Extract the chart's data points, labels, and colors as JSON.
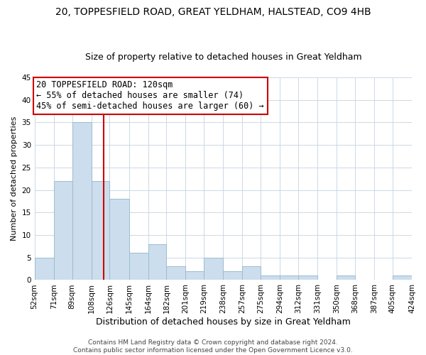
{
  "title": "20, TOPPESFIELD ROAD, GREAT YELDHAM, HALSTEAD, CO9 4HB",
  "subtitle": "Size of property relative to detached houses in Great Yeldham",
  "xlabel": "Distribution of detached houses by size in Great Yeldham",
  "ylabel": "Number of detached properties",
  "bar_edges": [
    52,
    71,
    89,
    108,
    126,
    145,
    164,
    182,
    201,
    219,
    238,
    257,
    275,
    294,
    312,
    331,
    350,
    368,
    387,
    405,
    424
  ],
  "bar_heights": [
    5,
    22,
    35,
    22,
    18,
    6,
    8,
    3,
    2,
    5,
    2,
    3,
    1,
    1,
    1,
    0,
    1,
    0,
    0,
    1
  ],
  "bar_color": "#ccdded",
  "bar_edgecolor": "#9bbdcf",
  "vline_x": 120,
  "vline_color": "#cc0000",
  "annotation_title": "20 TOPPESFIELD ROAD: 120sqm",
  "annotation_line1": "← 55% of detached houses are smaller (74)",
  "annotation_line2": "45% of semi-detached houses are larger (60) →",
  "annotation_box_color": "#ffffff",
  "annotation_box_edgecolor": "#cc0000",
  "ylim": [
    0,
    45
  ],
  "yticks": [
    0,
    5,
    10,
    15,
    20,
    25,
    30,
    35,
    40,
    45
  ],
  "tick_labels": [
    "52sqm",
    "71sqm",
    "89sqm",
    "108sqm",
    "126sqm",
    "145sqm",
    "164sqm",
    "182sqm",
    "201sqm",
    "219sqm",
    "238sqm",
    "257sqm",
    "275sqm",
    "294sqm",
    "312sqm",
    "331sqm",
    "350sqm",
    "368sqm",
    "387sqm",
    "405sqm",
    "424sqm"
  ],
  "footer_line1": "Contains HM Land Registry data © Crown copyright and database right 2024.",
  "footer_line2": "Contains public sector information licensed under the Open Government Licence v3.0.",
  "background_color": "#ffffff",
  "grid_color": "#ccd8e4",
  "title_fontsize": 10,
  "subtitle_fontsize": 9,
  "xlabel_fontsize": 9,
  "ylabel_fontsize": 8,
  "tick_fontsize": 7.5,
  "footer_fontsize": 6.5,
  "annotation_fontsize": 8.5
}
